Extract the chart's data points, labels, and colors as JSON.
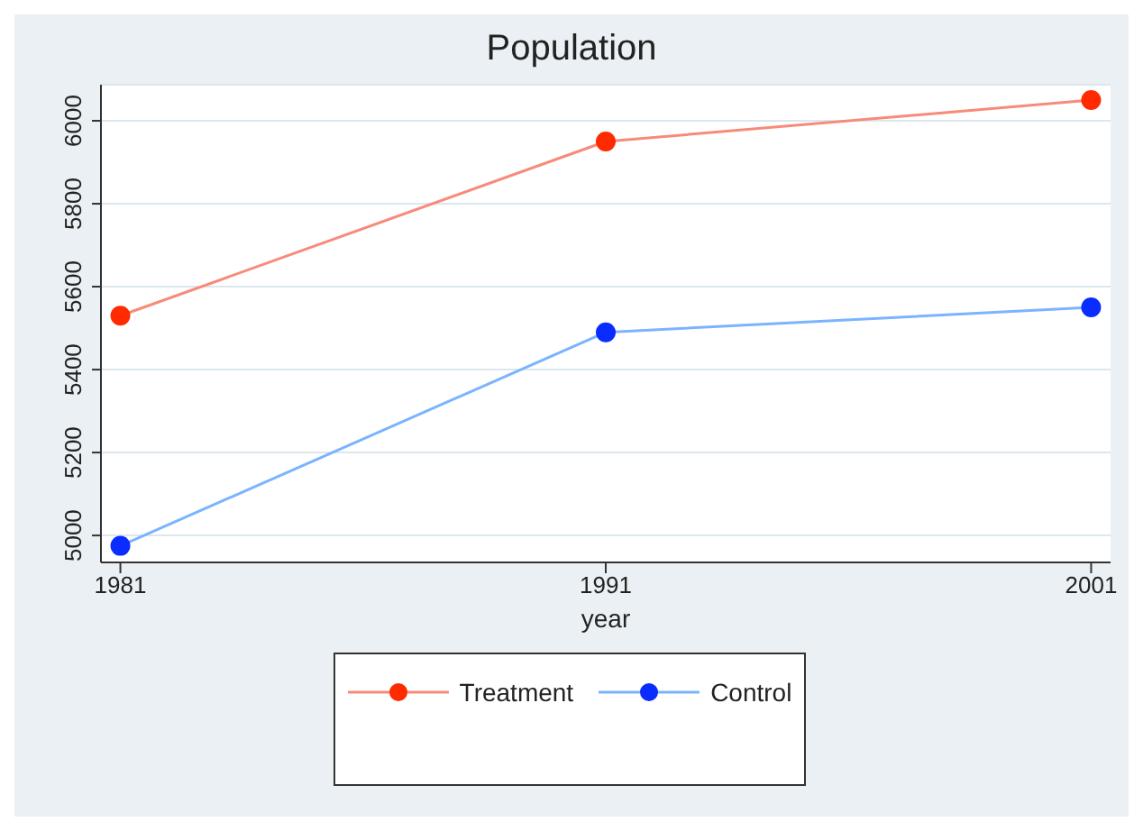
{
  "chart_data": {
    "type": "line",
    "title": "Population",
    "xlabel": "year",
    "x": [
      1981,
      1991,
      2001
    ],
    "series": [
      {
        "name": "Treatment",
        "color": "#ff2a00",
        "values": [
          5530,
          5950,
          6050
        ]
      },
      {
        "name": "Control",
        "color": "#0a2cff",
        "values": [
          4975,
          5490,
          5550
        ]
      }
    ],
    "xlim": [
      1980.6,
      2001.4
    ],
    "xticks": [
      1981,
      1991,
      2001
    ],
    "ylim": [
      4935,
      6087
    ],
    "yticks": [
      5000,
      5200,
      5400,
      5600,
      5800,
      6000
    ],
    "grid": "y",
    "legend": "bottom",
    "marker": "circle",
    "line_style": "solid"
  }
}
